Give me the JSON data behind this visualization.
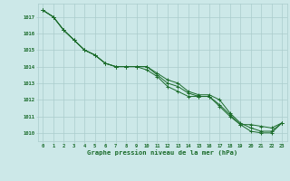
{
  "title": "Graphe pression niveau de la mer (hPa)",
  "bg_color": "#cce8e8",
  "grid_color": "#aacccc",
  "line_color": "#1a6b2a",
  "xlim_min": -0.5,
  "xlim_max": 23.5,
  "ylim_min": 1009.5,
  "ylim_max": 1017.8,
  "yticks": [
    1010,
    1011,
    1012,
    1013,
    1014,
    1015,
    1016,
    1017
  ],
  "xticks": [
    0,
    1,
    2,
    3,
    4,
    5,
    6,
    7,
    8,
    9,
    10,
    11,
    12,
    13,
    14,
    15,
    16,
    17,
    18,
    19,
    20,
    21,
    22,
    23
  ],
  "series1": [
    1017.4,
    1017.0,
    1016.2,
    1015.6,
    1015.0,
    1014.7,
    1014.2,
    1014.0,
    1014.0,
    1014.0,
    1014.0,
    1013.6,
    1013.2,
    1013.0,
    1012.5,
    1012.3,
    1012.3,
    1012.0,
    1011.2,
    1010.6,
    1010.3,
    1010.1,
    1010.1,
    1010.6
  ],
  "series2": [
    1017.4,
    1017.0,
    1016.2,
    1015.6,
    1015.0,
    1014.7,
    1014.2,
    1014.0,
    1014.0,
    1014.0,
    1014.0,
    1013.5,
    1013.0,
    1012.8,
    1012.4,
    1012.2,
    1012.2,
    1011.7,
    1011.1,
    1010.5,
    1010.1,
    1010.0,
    1010.0,
    1010.6
  ],
  "series3": [
    1017.4,
    1017.0,
    1016.2,
    1015.6,
    1015.0,
    1014.7,
    1014.2,
    1014.0,
    1014.0,
    1014.0,
    1013.8,
    1013.4,
    1012.8,
    1012.5,
    1012.2,
    1012.2,
    1012.2,
    1011.6,
    1011.0,
    1010.5,
    1010.5,
    1010.4,
    1010.3,
    1010.6
  ],
  "tick_fontsize": 4.0,
  "label_fontsize": 5.2,
  "linewidth": 0.7,
  "markersize": 2.5
}
